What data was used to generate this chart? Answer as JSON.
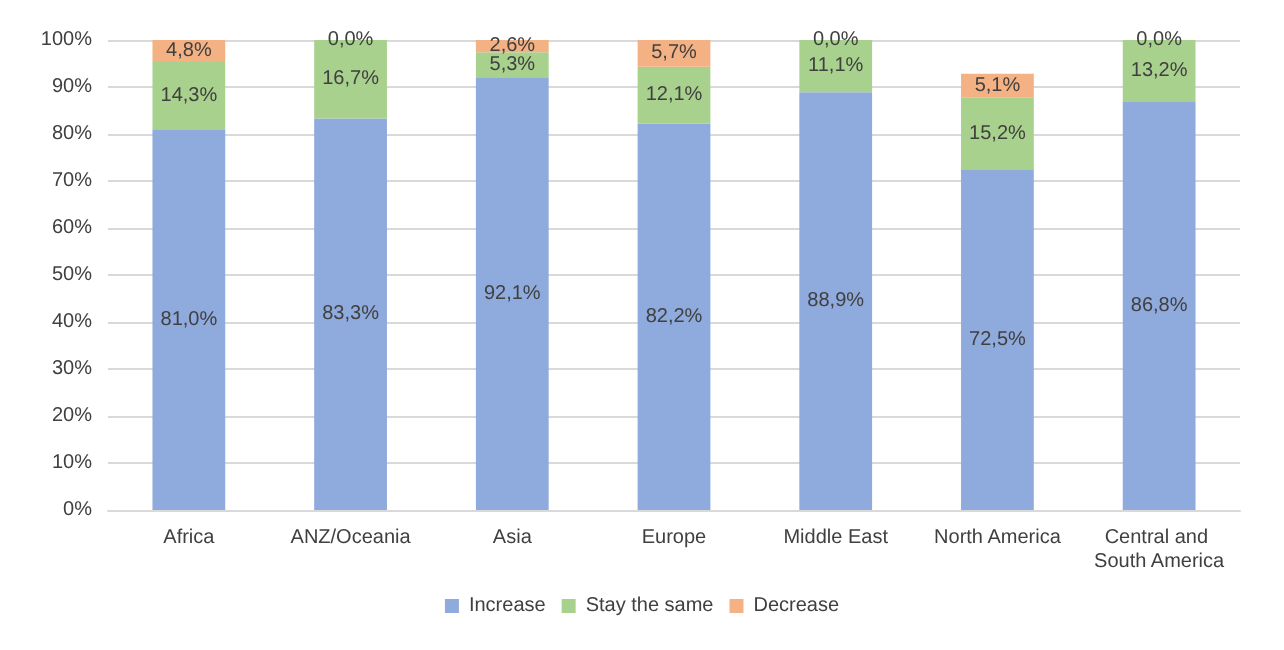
{
  "chart_data": {
    "type": "bar",
    "stacked": true,
    "categories": [
      "Africa",
      "ANZ/Oceania",
      "Asia",
      "Europe",
      "Middle East",
      "North America",
      "Central and South America"
    ],
    "series": [
      {
        "name": "Increase",
        "color": "#8faadc",
        "values": [
          81.0,
          83.3,
          92.1,
          82.2,
          88.9,
          72.5,
          86.8
        ],
        "value_labels": [
          "81,0%",
          "83,3%",
          "92,1%",
          "82,2%",
          "88,9%",
          "72,5%",
          "86,8%"
        ]
      },
      {
        "name": "Stay the same",
        "color": "#a9d18e",
        "values": [
          14.3,
          16.7,
          5.3,
          12.1,
          11.1,
          15.2,
          13.2
        ],
        "value_labels": [
          "14,3%",
          "16,7%",
          "5,3%",
          "12,1%",
          "11,1%",
          "15,2%",
          "13,2%"
        ]
      },
      {
        "name": "Decrease",
        "color": "#f4b183",
        "values": [
          4.8,
          0.0,
          2.6,
          5.7,
          0.0,
          5.1,
          0.0
        ],
        "value_labels": [
          "4,8%",
          "0,0%",
          "2,6%",
          "5,7%",
          "0,0%",
          "5,1%",
          "0,0%"
        ]
      }
    ],
    "ylim": [
      0,
      100
    ],
    "yticks": [
      {
        "value": 0,
        "label": "0%"
      },
      {
        "value": 10,
        "label": "10%"
      },
      {
        "value": 20,
        "label": "20%"
      },
      {
        "value": 30,
        "label": "30%"
      },
      {
        "value": 40,
        "label": "40%"
      },
      {
        "value": 50,
        "label": "50%"
      },
      {
        "value": 60,
        "label": "60%"
      },
      {
        "value": 70,
        "label": "70%"
      },
      {
        "value": 80,
        "label": "80%"
      },
      {
        "value": 90,
        "label": "90%"
      },
      {
        "value": 100,
        "label": "100%"
      }
    ],
    "grid": "y",
    "legend": "bottom"
  }
}
